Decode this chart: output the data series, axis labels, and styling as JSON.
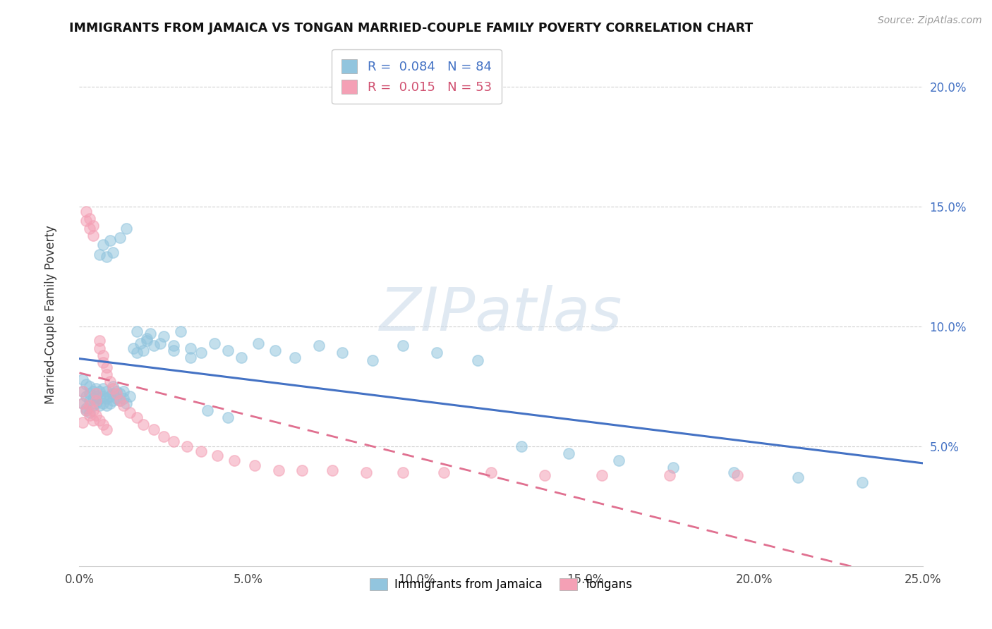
{
  "title": "IMMIGRANTS FROM JAMAICA VS TONGAN MARRIED-COUPLE FAMILY POVERTY CORRELATION CHART",
  "source": "Source: ZipAtlas.com",
  "ylabel": "Married-Couple Family Poverty",
  "watermark": "ZIPatlas",
  "xmin": 0.0,
  "xmax": 0.25,
  "ymin": 0.0,
  "ymax": 0.21,
  "blue_color": "#92c5de",
  "pink_color": "#f4a0b5",
  "blue_line_color": "#4472c4",
  "pink_line_color": "#e07090",
  "r_jamaica": 0.084,
  "n_jamaica": 84,
  "r_tongan": 0.015,
  "n_tongan": 53,
  "jamaica_x": [
    0.001,
    0.001,
    0.001,
    0.002,
    0.002,
    0.002,
    0.002,
    0.003,
    0.003,
    0.003,
    0.003,
    0.004,
    0.004,
    0.004,
    0.005,
    0.005,
    0.005,
    0.006,
    0.006,
    0.006,
    0.007,
    0.007,
    0.007,
    0.008,
    0.008,
    0.008,
    0.009,
    0.009,
    0.01,
    0.01,
    0.01,
    0.011,
    0.011,
    0.012,
    0.012,
    0.013,
    0.013,
    0.014,
    0.015,
    0.016,
    0.017,
    0.018,
    0.019,
    0.02,
    0.021,
    0.022,
    0.025,
    0.028,
    0.03,
    0.033,
    0.036,
    0.04,
    0.044,
    0.048,
    0.053,
    0.058,
    0.064,
    0.071,
    0.078,
    0.087,
    0.096,
    0.106,
    0.118,
    0.131,
    0.145,
    0.16,
    0.176,
    0.194,
    0.213,
    0.232,
    0.006,
    0.007,
    0.008,
    0.009,
    0.01,
    0.012,
    0.014,
    0.017,
    0.02,
    0.024,
    0.028,
    0.033,
    0.038,
    0.044
  ],
  "jamaica_y": [
    0.073,
    0.068,
    0.078,
    0.071,
    0.066,
    0.076,
    0.065,
    0.072,
    0.069,
    0.075,
    0.064,
    0.07,
    0.073,
    0.067,
    0.071,
    0.068,
    0.074,
    0.07,
    0.073,
    0.067,
    0.071,
    0.074,
    0.068,
    0.07,
    0.073,
    0.067,
    0.071,
    0.068,
    0.072,
    0.069,
    0.075,
    0.07,
    0.073,
    0.069,
    0.072,
    0.07,
    0.073,
    0.068,
    0.071,
    0.091,
    0.089,
    0.093,
    0.09,
    0.094,
    0.097,
    0.092,
    0.096,
    0.092,
    0.098,
    0.091,
    0.089,
    0.093,
    0.09,
    0.087,
    0.093,
    0.09,
    0.087,
    0.092,
    0.089,
    0.086,
    0.092,
    0.089,
    0.086,
    0.05,
    0.047,
    0.044,
    0.041,
    0.039,
    0.037,
    0.035,
    0.13,
    0.134,
    0.129,
    0.136,
    0.131,
    0.137,
    0.141,
    0.098,
    0.095,
    0.093,
    0.09,
    0.087,
    0.065,
    0.062
  ],
  "tongan_x": [
    0.001,
    0.001,
    0.001,
    0.002,
    0.002,
    0.002,
    0.003,
    0.003,
    0.003,
    0.004,
    0.004,
    0.004,
    0.005,
    0.005,
    0.006,
    0.006,
    0.007,
    0.007,
    0.008,
    0.008,
    0.009,
    0.01,
    0.011,
    0.012,
    0.013,
    0.015,
    0.017,
    0.019,
    0.022,
    0.025,
    0.028,
    0.032,
    0.036,
    0.041,
    0.046,
    0.052,
    0.059,
    0.066,
    0.075,
    0.085,
    0.096,
    0.108,
    0.122,
    0.138,
    0.155,
    0.175,
    0.195,
    0.003,
    0.004,
    0.005,
    0.006,
    0.007,
    0.008
  ],
  "tongan_y": [
    0.073,
    0.068,
    0.06,
    0.144,
    0.148,
    0.065,
    0.141,
    0.145,
    0.063,
    0.138,
    0.142,
    0.061,
    0.069,
    0.072,
    0.094,
    0.091,
    0.088,
    0.085,
    0.083,
    0.08,
    0.077,
    0.074,
    0.072,
    0.069,
    0.067,
    0.064,
    0.062,
    0.059,
    0.057,
    0.054,
    0.052,
    0.05,
    0.048,
    0.046,
    0.044,
    0.042,
    0.04,
    0.04,
    0.04,
    0.039,
    0.039,
    0.039,
    0.039,
    0.038,
    0.038,
    0.038,
    0.038,
    0.067,
    0.065,
    0.063,
    0.061,
    0.059,
    0.057
  ]
}
